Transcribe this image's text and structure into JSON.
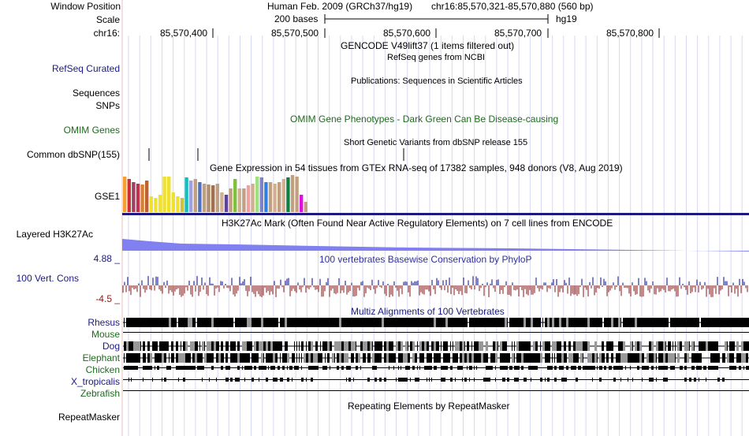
{
  "header": {
    "window_position_label": "Window Position",
    "scale_label": "Scale",
    "chrom_label": "chr16:",
    "assembly_text": "Human Feb. 2009 (GRCh37/hg19)",
    "position_text": "chr16:85,570,321-85,570,880 (560 bp)",
    "scale_text": "200 bases",
    "db_text": "hg19",
    "coords": [
      "85,570,400",
      "85,570,500",
      "85,570,600",
      "85,570,700",
      "85,570,800"
    ]
  },
  "tracks": {
    "gencode_title": "GENCODE V49lift37 (1 items filtered out)",
    "refseq_label": "RefSeq Curated",
    "refseq_title": "RefSeq genes from NCBI",
    "publications_title": "Publications: Sequences in Scientific Articles",
    "sequences_label": "Sequences",
    "snps_label": "SNPs",
    "omim_label": "OMIM Genes",
    "omim_title": "OMIM Gene Phenotypes - Dark Green Can Be Disease-causing",
    "dbsnp_title": "Short Genetic Variants from dbSNP release 155",
    "dbsnp_label": "Common dbSNP(155)",
    "gtex_title": "Gene Expression in 54 tissues from GTEx RNA-seq of 17382 samples, 948 donors (V8, Aug 2019)",
    "gtex_label": "GSE1",
    "h3k27ac_label": "Layered H3K27Ac",
    "h3k27ac_title": "H3K27Ac Mark (Often Found Near Active Regulatory Elements) on 7 cell lines from ENCODE",
    "cons_max": "4.88 _",
    "cons_label": "100 Vert. Cons",
    "cons_min": "-4.5 _",
    "cons_title": "100 vertebrates Basewise Conservation by PhyloP",
    "multiz_title": "Multiz Alignments of 100 Vertebrates",
    "species": [
      "Rhesus",
      "Mouse",
      "Dog",
      "Elephant",
      "Chicken",
      "X_tropicalis",
      "Zebrafish"
    ],
    "repeat_title": "Repeating Elements by RepeatMasker",
    "repeat_label": "RepeatMasker"
  },
  "gtex": {
    "values": [
      45,
      42,
      38,
      36,
      35,
      40,
      20,
      18,
      22,
      45,
      45,
      25,
      20,
      18,
      44,
      40,
      42,
      38,
      36,
      35,
      34,
      36,
      25,
      22,
      30,
      42,
      30,
      30,
      34,
      36,
      45,
      44,
      38,
      38,
      36,
      38,
      42,
      44,
      47,
      45,
      22,
      13
    ],
    "colors": [
      "#f5a030",
      "#d13030",
      "#a04060",
      "#c03050",
      "#d88030",
      "#c06030",
      "#f0e030",
      "#f0e030",
      "#f0e030",
      "#f0e030",
      "#f0e030",
      "#f0e030",
      "#f0e030",
      "#d0c040",
      "#10c0c0",
      "#a0a0e0",
      "#c0a080",
      "#5070c0",
      "#c0a080",
      "#b09070",
      "#a07050",
      "#c0a080",
      "#d0b090",
      "#6040a0",
      "#c0a080",
      "#80c040",
      "#d0b090",
      "#c0a080",
      "#f0a0a0",
      "#d0b090",
      "#a0e080",
      "#8080d0",
      "#3080e0",
      "#c0a080",
      "#d0b090",
      "#c0a080",
      "#d0b090",
      "#108040",
      "#c0a080",
      "#c0a080",
      "#e010e0",
      "#c0a080"
    ]
  }
}
